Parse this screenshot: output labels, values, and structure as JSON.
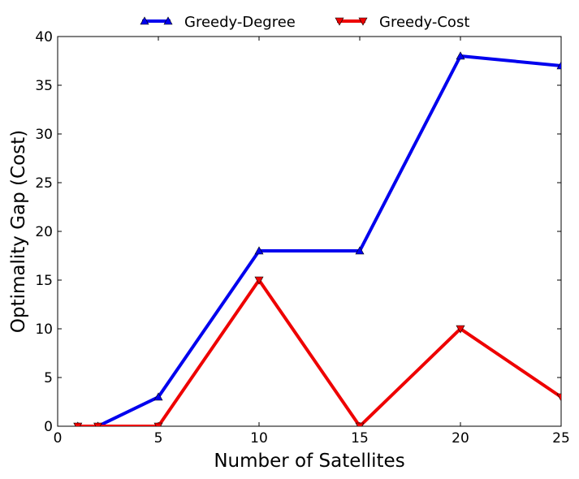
{
  "chart_data": {
    "type": "line",
    "title": "",
    "xlabel": "Number of Satellites",
    "ylabel": "Optimality Gap (Cost)",
    "xlim": [
      0,
      25
    ],
    "ylim": [
      0,
      40
    ],
    "xticks": [
      0,
      5,
      10,
      15,
      20,
      25
    ],
    "yticks": [
      0,
      5,
      10,
      15,
      20,
      25,
      30,
      35,
      40
    ],
    "grid": false,
    "legend_position": "top-center",
    "series": [
      {
        "name": "Greedy-Degree",
        "color": "#0000ee",
        "marker": "triangle-up",
        "x": [
          1,
          2,
          5,
          10,
          15,
          20,
          25
        ],
        "y": [
          0,
          0,
          3,
          18,
          18,
          38,
          37
        ]
      },
      {
        "name": "Greedy-Cost",
        "color": "#ee0000",
        "marker": "triangle-down",
        "x": [
          1,
          2,
          5,
          10,
          15,
          20,
          25
        ],
        "y": [
          0,
          0,
          0,
          15,
          0,
          10,
          3
        ]
      }
    ]
  }
}
